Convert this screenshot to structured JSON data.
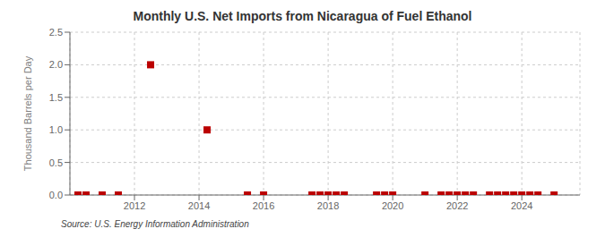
{
  "chart_data": {
    "type": "scatter",
    "title": "Monthly U.S. Net Imports from Nicaragua of Fuel Ethanol",
    "ylabel": "Thousand Barrels per Day",
    "annotations": [
      "Source: U.S. Energy Information Administration"
    ],
    "x": [
      2010.25,
      2010.5,
      2011.0,
      2011.5,
      2012.5,
      2014.25,
      2015.5,
      2016.0,
      2017.5,
      2017.75,
      2018.0,
      2018.25,
      2018.5,
      2019.5,
      2019.75,
      2020.0,
      2021.0,
      2021.5,
      2021.75,
      2022.0,
      2022.25,
      2022.5,
      2023.0,
      2023.25,
      2023.5,
      2023.75,
      2024.0,
      2024.25,
      2024.5,
      2025.0
    ],
    "values": [
      0.0,
      0.0,
      0.0,
      0.0,
      2.0,
      1.0,
      0.0,
      0.0,
      0.0,
      0.0,
      0.0,
      0.0,
      0.0,
      0.0,
      0.0,
      0.0,
      0.0,
      0.0,
      0.0,
      0.0,
      0.0,
      0.0,
      0.0,
      0.0,
      0.0,
      0.0,
      0.0,
      0.0,
      0.0,
      0.0
    ],
    "color": "#bb0000",
    "marker": "square",
    "xlim": [
      2010.0,
      2025.8
    ],
    "ylim": [
      0.0,
      2.5
    ],
    "xticks": [
      2012,
      2014,
      2016,
      2018,
      2020,
      2022,
      2024
    ],
    "yticks": [
      {
        "value": 0.0,
        "label": "0.0"
      },
      {
        "value": 0.5,
        "label": "0.5"
      },
      {
        "value": 1.0,
        "label": "1.0"
      },
      {
        "value": 1.5,
        "label": "1.5"
      },
      {
        "value": 2.0,
        "label": "2.0"
      },
      {
        "value": 2.5,
        "label": "2.5"
      }
    ],
    "grid": true
  }
}
